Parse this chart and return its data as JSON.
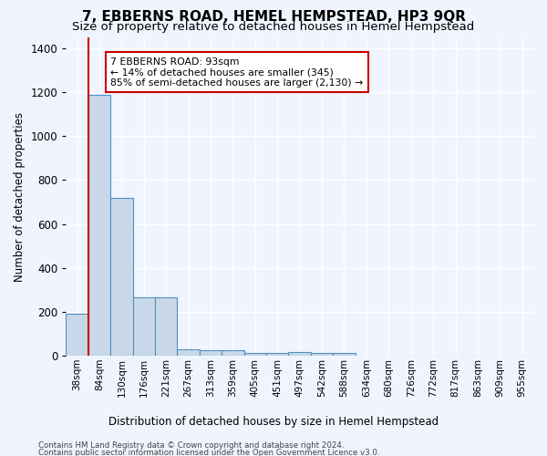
{
  "title": "7, EBBERNS ROAD, HEMEL HEMPSTEAD, HP3 9QR",
  "subtitle": "Size of property relative to detached houses in Hemel Hempstead",
  "xlabel": "Distribution of detached houses by size in Hemel Hempstead",
  "ylabel": "Number of detached properties",
  "footnote1": "Contains HM Land Registry data © Crown copyright and database right 2024.",
  "footnote2": "Contains public sector information licensed under the Open Government Licence v3.0.",
  "bins": [
    "38sqm",
    "84sqm",
    "130sqm",
    "176sqm",
    "221sqm",
    "267sqm",
    "313sqm",
    "359sqm",
    "405sqm",
    "451sqm",
    "497sqm",
    "542sqm",
    "588sqm",
    "634sqm",
    "680sqm",
    "726sqm",
    "772sqm",
    "817sqm",
    "863sqm",
    "909sqm",
    "955sqm"
  ],
  "bar_heights": [
    190,
    1190,
    720,
    265,
    265,
    30,
    27,
    25,
    12,
    12,
    15,
    12,
    12,
    0,
    0,
    0,
    0,
    0,
    0,
    0,
    0
  ],
  "bar_color": "#c8d8e8",
  "bar_edge_color": "#5090c0",
  "vline_x": 0.5,
  "vline_color": "#cc0000",
  "annotation_text": "7 EBBERNS ROAD: 93sqm\n← 14% of detached houses are smaller (345)\n85% of semi-detached houses are larger (2,130) →",
  "annotation_box_color": "#ffffff",
  "annotation_box_edge": "#cc0000",
  "ylim": [
    0,
    1450
  ],
  "background_color": "#f0f4ff",
  "grid_color": "#ffffff",
  "title_fontsize": 11,
  "subtitle_fontsize": 9.5
}
